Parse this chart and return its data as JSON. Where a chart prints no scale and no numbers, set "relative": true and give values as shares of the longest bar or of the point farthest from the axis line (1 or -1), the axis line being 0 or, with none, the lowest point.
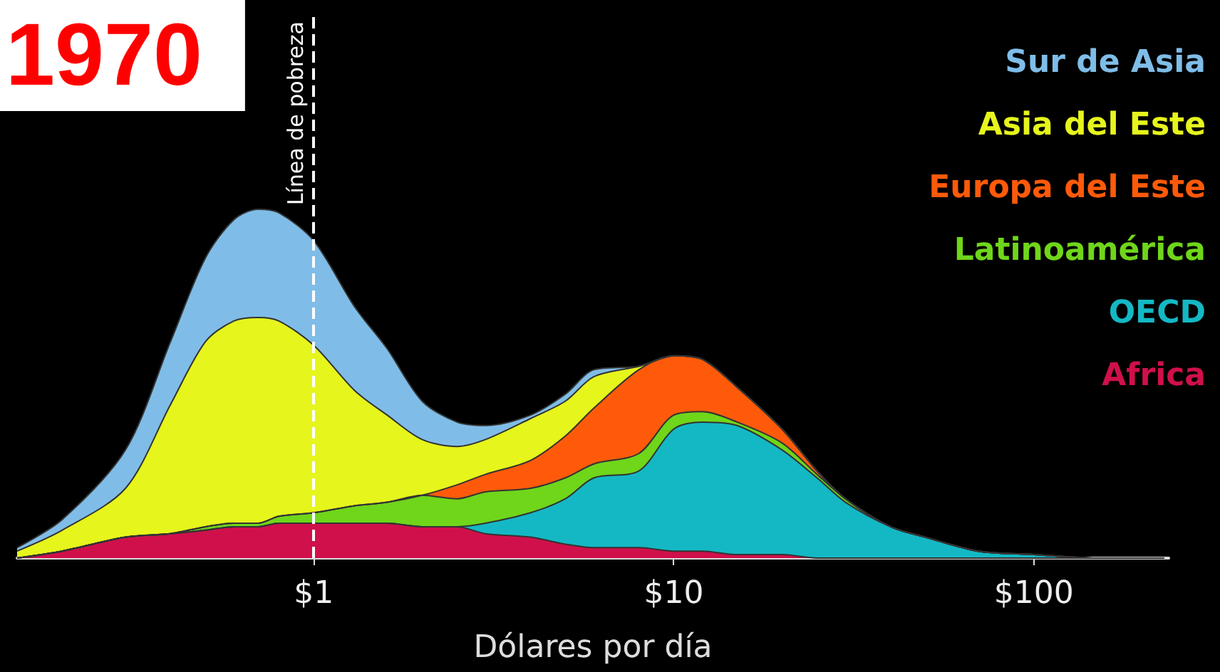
{
  "chart_data": {
    "type": "area",
    "title": "1970",
    "xlabel": "Dólares por día",
    "stacked": true,
    "relative": true,
    "log": "x",
    "grid": false,
    "legend": "top right",
    "x": [
      0.15,
      0.2,
      0.3,
      0.4,
      0.5,
      0.6,
      0.7,
      0.8,
      1,
      1.3,
      1.6,
      2,
      2.5,
      3,
      4,
      5,
      6,
      8,
      10,
      12,
      15,
      20,
      25,
      30,
      40,
      50,
      70,
      100,
      150,
      230
    ],
    "xlim": [
      0.15,
      237
    ],
    "xticks": [
      {
        "value": 1,
        "label": "$1"
      },
      {
        "value": 10,
        "label": "$10"
      },
      {
        "value": 100,
        "label": "$100"
      }
    ],
    "ref_lines": [
      {
        "axis": "x",
        "value": 1,
        "label": "Línea de pobreza",
        "color": "#ffffff",
        "line_style": "dashed"
      }
    ],
    "series": [
      {
        "name": "Africa",
        "color": "#d0104a",
        "values": [
          0,
          0.02,
          0.06,
          0.07,
          0.08,
          0.09,
          0.09,
          0.1,
          0.1,
          0.1,
          0.1,
          0.09,
          0.09,
          0.07,
          0.06,
          0.04,
          0.03,
          0.03,
          0.02,
          0.02,
          0.01,
          0.01,
          0,
          0,
          0,
          0,
          0,
          0,
          0,
          0
        ]
      },
      {
        "name": "OECD",
        "color": "#14b8c4",
        "values": [
          0,
          0,
          0,
          0,
          0,
          0,
          0,
          0,
          0,
          0,
          0,
          0,
          0,
          0.03,
          0.07,
          0.13,
          0.2,
          0.22,
          0.35,
          0.37,
          0.37,
          0.3,
          0.23,
          0.16,
          0.09,
          0.06,
          0.02,
          0.01,
          0,
          0
        ]
      },
      {
        "name": "Latinoamérica",
        "color": "#6fd61a",
        "values": [
          0,
          0,
          0,
          0,
          0.01,
          0.01,
          0.01,
          0.02,
          0.03,
          0.05,
          0.06,
          0.09,
          0.08,
          0.09,
          0.07,
          0.06,
          0.04,
          0.05,
          0.04,
          0.03,
          0.01,
          0.02,
          0.01,
          0.01,
          0,
          0,
          0,
          0,
          0,
          0
        ]
      },
      {
        "name": "Europa del Este",
        "color": "#ff5a0a",
        "values": [
          0,
          0,
          0,
          0,
          0,
          0,
          0,
          0,
          0,
          0,
          0,
          0,
          0.04,
          0.05,
          0.08,
          0.12,
          0.16,
          0.24,
          0.17,
          0.15,
          0.1,
          0.04,
          0.01,
          0,
          0,
          0,
          0,
          0,
          0,
          0
        ]
      },
      {
        "name": "Asia del Este",
        "color": "#e6f51c",
        "values": [
          0.02,
          0.06,
          0.14,
          0.37,
          0.53,
          0.58,
          0.59,
          0.56,
          0.48,
          0.33,
          0.25,
          0.16,
          0.11,
          0.1,
          0.12,
          0.1,
          0.09,
          0.01,
          0,
          0,
          0,
          0,
          0,
          0,
          0,
          0,
          0,
          0,
          0,
          0
        ]
      },
      {
        "name": "Sur de Asia",
        "color": "#7fbde8",
        "values": [
          0.01,
          0.03,
          0.11,
          0.18,
          0.24,
          0.29,
          0.31,
          0.31,
          0.3,
          0.24,
          0.19,
          0.11,
          0.07,
          0.04,
          0.01,
          0.02,
          0.02,
          0,
          0,
          0,
          0,
          0,
          0,
          0,
          0,
          0,
          0,
          0,
          0,
          0
        ]
      }
    ]
  }
}
